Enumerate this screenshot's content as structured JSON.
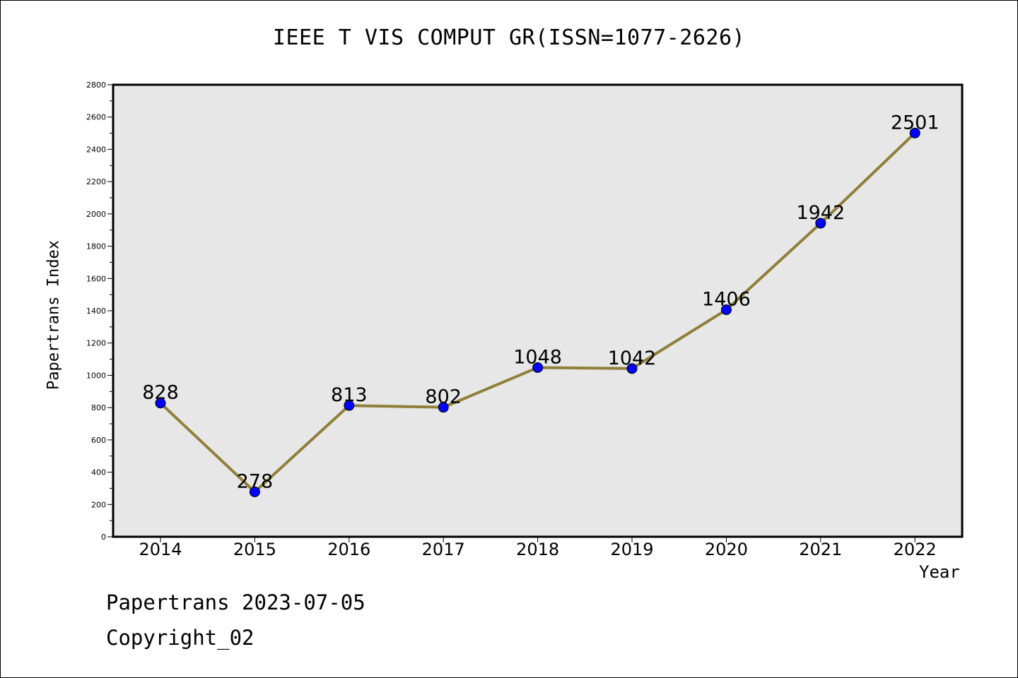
{
  "chart_data": {
    "type": "line",
    "title": "IEEE T VIS COMPUT GR(ISSN=1077-2626)",
    "xlabel": "Year",
    "ylabel": "Papertrans Index",
    "categories": [
      "2014",
      "2015",
      "2016",
      "2017",
      "2018",
      "2019",
      "2020",
      "2021",
      "2022"
    ],
    "series": [
      {
        "values": [
          828,
          278,
          813,
          802,
          1048,
          1042,
          1406,
          1942,
          2501
        ]
      }
    ],
    "ylim": [
      0,
      2800
    ],
    "yticks": [
      0,
      200,
      400,
      600,
      800,
      1000,
      1200,
      1400,
      1600,
      1800,
      2000,
      2200,
      2400,
      2600,
      2800
    ],
    "grid": false,
    "colors": {
      "line": "#8f7f3a",
      "marker": "#0000ff",
      "plot_bg": "#e7e7e7"
    }
  },
  "footer": {
    "line1": "Papertrans 2023-07-05",
    "line2": "Copyright_02"
  }
}
